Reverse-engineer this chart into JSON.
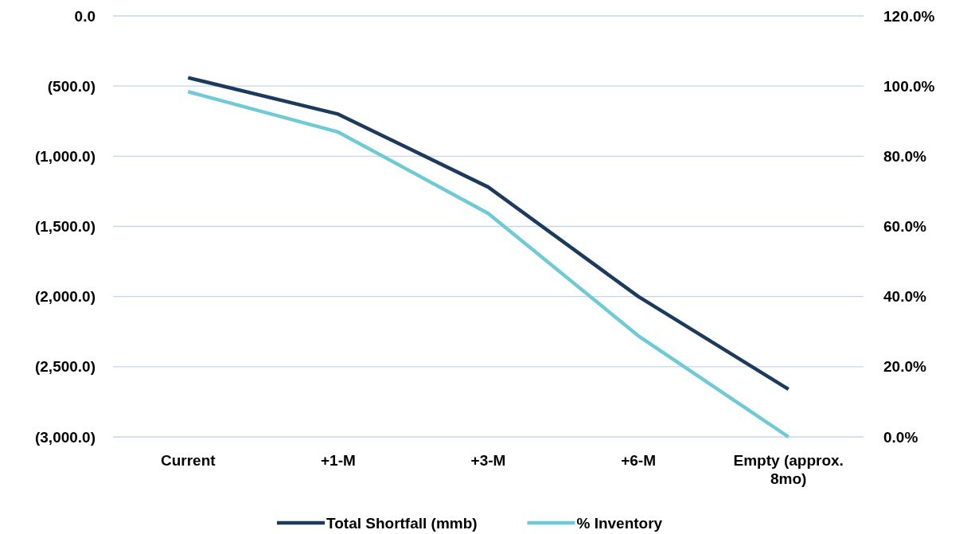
{
  "chart_data": {
    "type": "line",
    "categories": [
      "Current",
      "+1-M",
      "+3-M",
      "+6-M",
      "Empty (approx. 8mo)"
    ],
    "series": [
      {
        "name": "Total Shortfall (mmb)",
        "color": "#1b3a5c",
        "values": [
          -440,
          -700,
          -1220,
          -2000,
          -2660
        ]
      },
      {
        "name": "% Inventory",
        "color": "#6ecbd6",
        "axis": "y2",
        "values": [
          98.4,
          86.9,
          63.7,
          28.8,
          0
        ]
      }
    ],
    "ylim": [
      -3000,
      0
    ],
    "yticks": [
      {
        "value": -3000,
        "label": "(3,000.0)"
      },
      {
        "value": -2500,
        "label": "(2,500.0)"
      },
      {
        "value": -2000,
        "label": "(2,000.0)"
      },
      {
        "value": -1500,
        "label": "(1,500.0)"
      },
      {
        "value": -1000,
        "label": "(1,000.0)"
      },
      {
        "value": -500,
        "label": "(500.0)"
      },
      {
        "value": 0,
        "label": "0.0"
      }
    ],
    "y2lim": [
      0,
      120
    ],
    "y2ticks": [
      {
        "value": 0,
        "label": "0.0%"
      },
      {
        "value": 20,
        "label": "20.0%"
      },
      {
        "value": 40,
        "label": "40.0%"
      },
      {
        "value": 60,
        "label": "60.0%"
      },
      {
        "value": 80,
        "label": "80.0%"
      },
      {
        "value": 100,
        "label": "100.0%"
      },
      {
        "value": 120,
        "label": "120.0%"
      }
    ],
    "grid": "y",
    "legend": "bottom",
    "marker": "none",
    "line_style": "solid"
  }
}
